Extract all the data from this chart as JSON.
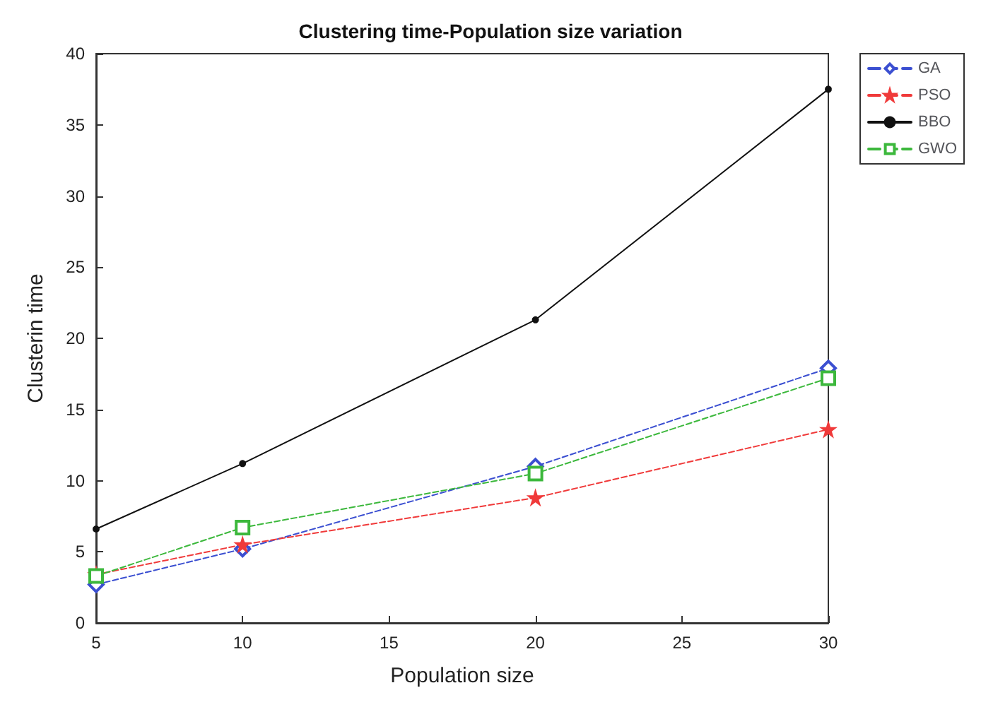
{
  "chart_data": {
    "type": "line",
    "title": "Clustering time-Population size variation",
    "xlabel": "Population size",
    "ylabel": "Clusterin time",
    "x": [
      5,
      10,
      20,
      30
    ],
    "series": [
      {
        "name": "GA",
        "color": "#3b4fd1",
        "values": [
          2.7,
          5.2,
          11.0,
          17.9
        ],
        "marker": "diamond",
        "line_style": "dashed"
      },
      {
        "name": "PSO",
        "color": "#f03a3a",
        "values": [
          3.4,
          5.5,
          8.8,
          13.6
        ],
        "marker": "star",
        "line_style": "dashed"
      },
      {
        "name": "BBO",
        "color": "#111111",
        "values": [
          6.6,
          11.2,
          21.3,
          37.5
        ],
        "marker": "circle",
        "line_style": "solid"
      },
      {
        "name": "GWO",
        "color": "#3cb83c",
        "values": [
          3.3,
          6.7,
          10.5,
          17.2
        ],
        "marker": "square",
        "line_style": "dashed"
      }
    ],
    "xlim": [
      5,
      30
    ],
    "xticks": [
      5,
      10,
      15,
      20,
      25,
      30
    ],
    "ylim": [
      0,
      40
    ],
    "yticks": [
      0,
      5,
      10,
      15,
      20,
      25,
      30,
      35,
      40
    ],
    "grid": false,
    "legend": "top right"
  }
}
